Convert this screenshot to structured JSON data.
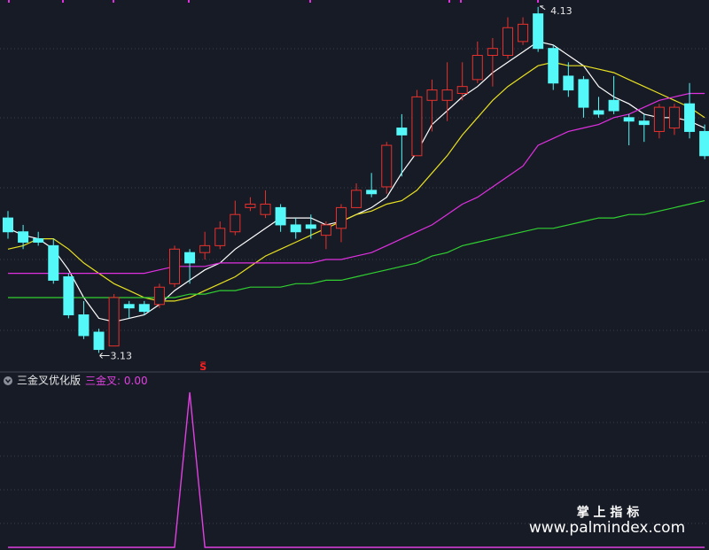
{
  "chart_data": [
    {
      "type": "candlestick",
      "up_color": "#e8312c",
      "down_color": "#54f8f8",
      "ylim": [
        3.08,
        4.15
      ],
      "open": [
        3.52,
        3.48,
        3.46,
        3.44,
        3.35,
        3.24,
        3.19,
        3.15,
        3.27,
        3.27,
        3.27,
        3.33,
        3.42,
        3.42,
        3.44,
        3.48,
        3.55,
        3.53,
        3.55,
        3.5,
        3.5,
        3.47,
        3.49,
        3.55,
        3.6,
        3.61,
        3.78,
        3.7,
        3.86,
        3.86,
        3.88,
        3.92,
        3.99,
        3.99,
        4.03,
        4.11,
        4.01,
        3.93,
        3.92,
        3.83,
        3.86,
        3.81,
        3.8,
        3.77,
        3.78,
        3.85,
        3.77
      ],
      "high": [
        3.54,
        3.5,
        3.48,
        3.46,
        3.36,
        3.28,
        3.2,
        3.3,
        3.28,
        3.28,
        3.33,
        3.44,
        3.43,
        3.48,
        3.51,
        3.57,
        3.58,
        3.6,
        3.56,
        3.52,
        3.53,
        3.51,
        3.56,
        3.62,
        3.65,
        3.74,
        3.82,
        3.89,
        3.92,
        3.97,
        3.97,
        4.03,
        4.04,
        4.1,
        4.1,
        4.13,
        4.02,
        3.97,
        3.93,
        3.87,
        3.93,
        3.82,
        3.82,
        3.85,
        3.85,
        3.91,
        3.79
      ],
      "low": [
        3.46,
        3.43,
        3.44,
        3.33,
        3.23,
        3.17,
        3.13,
        3.15,
        3.23,
        3.24,
        3.26,
        3.32,
        3.33,
        3.4,
        3.43,
        3.47,
        3.54,
        3.52,
        3.48,
        3.46,
        3.46,
        3.43,
        3.45,
        3.55,
        3.58,
        3.59,
        3.64,
        3.7,
        3.77,
        3.8,
        3.86,
        3.91,
        3.9,
        3.98,
        4.02,
        4.0,
        3.89,
        3.87,
        3.81,
        3.81,
        3.82,
        3.73,
        3.74,
        3.75,
        3.76,
        3.75,
        3.69
      ],
      "close": [
        3.48,
        3.45,
        3.45,
        3.34,
        3.24,
        3.18,
        3.14,
        3.29,
        3.26,
        3.25,
        3.32,
        3.43,
        3.39,
        3.44,
        3.49,
        3.53,
        3.56,
        3.56,
        3.5,
        3.48,
        3.49,
        3.5,
        3.55,
        3.6,
        3.59,
        3.73,
        3.76,
        3.87,
        3.89,
        3.89,
        3.9,
        3.99,
        4.01,
        4.07,
        4.08,
        4.01,
        3.91,
        3.89,
        3.84,
        3.82,
        3.83,
        3.8,
        3.79,
        3.84,
        3.84,
        3.77,
        3.7
      ],
      "lines": [
        {
          "color": "#ffffff",
          "values": [
            3.49,
            3.47,
            3.46,
            3.43,
            3.37,
            3.29,
            3.23,
            3.22,
            3.23,
            3.24,
            3.27,
            3.31,
            3.34,
            3.37,
            3.39,
            3.43,
            3.46,
            3.49,
            3.52,
            3.52,
            3.52,
            3.5,
            3.51,
            3.53,
            3.55,
            3.58,
            3.65,
            3.71,
            3.79,
            3.83,
            3.87,
            3.9,
            3.94,
            3.97,
            4.0,
            4.03,
            4.02,
            3.99,
            3.96,
            3.9,
            3.87,
            3.85,
            3.82,
            3.81,
            3.81,
            3.8,
            3.78
          ]
        },
        {
          "color": "#e8e020",
          "values": [
            3.43,
            3.44,
            3.46,
            3.46,
            3.43,
            3.39,
            3.36,
            3.33,
            3.31,
            3.29,
            3.28,
            3.28,
            3.29,
            3.31,
            3.33,
            3.35,
            3.38,
            3.41,
            3.43,
            3.45,
            3.47,
            3.49,
            3.51,
            3.53,
            3.54,
            3.56,
            3.57,
            3.6,
            3.65,
            3.7,
            3.76,
            3.81,
            3.86,
            3.9,
            3.93,
            3.96,
            3.97,
            3.96,
            3.96,
            3.95,
            3.94,
            3.92,
            3.9,
            3.88,
            3.86,
            3.84,
            3.81
          ]
        },
        {
          "color": "#e030e0",
          "values": [
            3.36,
            3.36,
            3.36,
            3.36,
            3.36,
            3.36,
            3.36,
            3.36,
            3.36,
            3.36,
            3.37,
            3.38,
            3.38,
            3.38,
            3.39,
            3.39,
            3.39,
            3.39,
            3.39,
            3.39,
            3.39,
            3.4,
            3.4,
            3.41,
            3.42,
            3.44,
            3.46,
            3.48,
            3.5,
            3.53,
            3.56,
            3.58,
            3.61,
            3.64,
            3.67,
            3.73,
            3.75,
            3.77,
            3.78,
            3.79,
            3.81,
            3.82,
            3.84,
            3.86,
            3.87,
            3.88,
            3.88
          ]
        },
        {
          "color": "#30d030",
          "values": [
            3.29,
            3.29,
            3.29,
            3.29,
            3.29,
            3.29,
            3.29,
            3.29,
            3.29,
            3.29,
            3.29,
            3.29,
            3.3,
            3.3,
            3.31,
            3.31,
            3.32,
            3.32,
            3.32,
            3.33,
            3.33,
            3.34,
            3.34,
            3.35,
            3.36,
            3.37,
            3.38,
            3.39,
            3.41,
            3.42,
            3.44,
            3.45,
            3.46,
            3.47,
            3.48,
            3.49,
            3.49,
            3.5,
            3.51,
            3.52,
            3.52,
            3.53,
            3.53,
            3.54,
            3.55,
            3.56,
            3.57
          ]
        }
      ],
      "annotations": [
        {
          "value": 4.13,
          "label": "4.13",
          "index": 35
        },
        {
          "value": 3.13,
          "label": "3.13",
          "index": 6
        }
      ],
      "signal": {
        "label": "S",
        "index": 13,
        "color": "#ff2020"
      }
    },
    {
      "type": "line",
      "title": "三金叉优化版",
      "ylim": [
        0,
        1.03
      ],
      "series": [
        {
          "name": "三金叉",
          "color": "#e040e0",
          "values": [
            0,
            0,
            0,
            0,
            0,
            0,
            0,
            0,
            0,
            0,
            0,
            0,
            1,
            0,
            0,
            0,
            0,
            0,
            0,
            0,
            0,
            0,
            0,
            0,
            0,
            0,
            0,
            0,
            0,
            0,
            0,
            0,
            0,
            0,
            0,
            0,
            0,
            0,
            0,
            0,
            0,
            0,
            0,
            0,
            0,
            0,
            0
          ]
        }
      ],
      "current_value": {
        "value": 0,
        "label": "0.00"
      }
    }
  ],
  "watermark": {
    "title": "掌 上 指 标",
    "url": "www.palmindex.com"
  }
}
